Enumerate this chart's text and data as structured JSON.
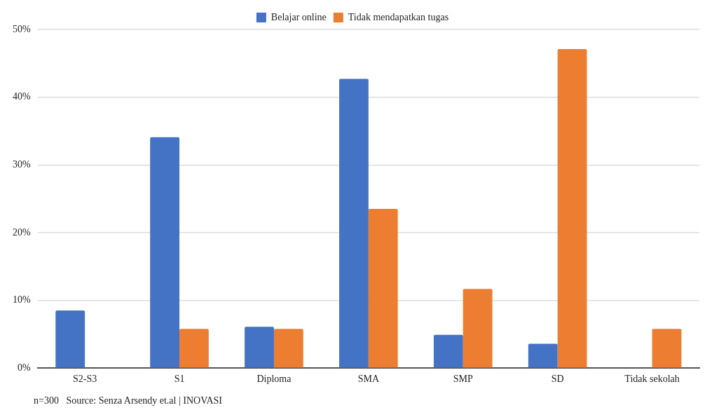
{
  "chart_data": {
    "type": "bar",
    "categories": [
      "S2-S3",
      "S1",
      "Diploma",
      "SMA",
      "SMP",
      "SD",
      "Tidak sekolah"
    ],
    "series": [
      {
        "name": "Belajar online",
        "color": "#4472c4",
        "values": [
          8.5,
          34.1,
          6.1,
          42.7,
          4.9,
          3.6,
          0
        ]
      },
      {
        "name": "Tidak mendapatkan tugas",
        "color": "#ed7d31",
        "values": [
          0,
          5.8,
          5.8,
          23.5,
          11.7,
          47.1,
          5.8
        ]
      }
    ],
    "ylim": [
      0,
      50
    ],
    "yticks": [
      {
        "value": 0,
        "label": "0%"
      },
      {
        "value": 10,
        "label": "10%"
      },
      {
        "value": 20,
        "label": "20%"
      },
      {
        "value": 30,
        "label": "30%"
      },
      {
        "value": 40,
        "label": "40%"
      },
      {
        "value": 50,
        "label": "50%"
      }
    ],
    "grid": "y",
    "legend": "top",
    "annotations": [
      "n=300   Source: Senza Arsendy et.al | INOVASI"
    ]
  }
}
